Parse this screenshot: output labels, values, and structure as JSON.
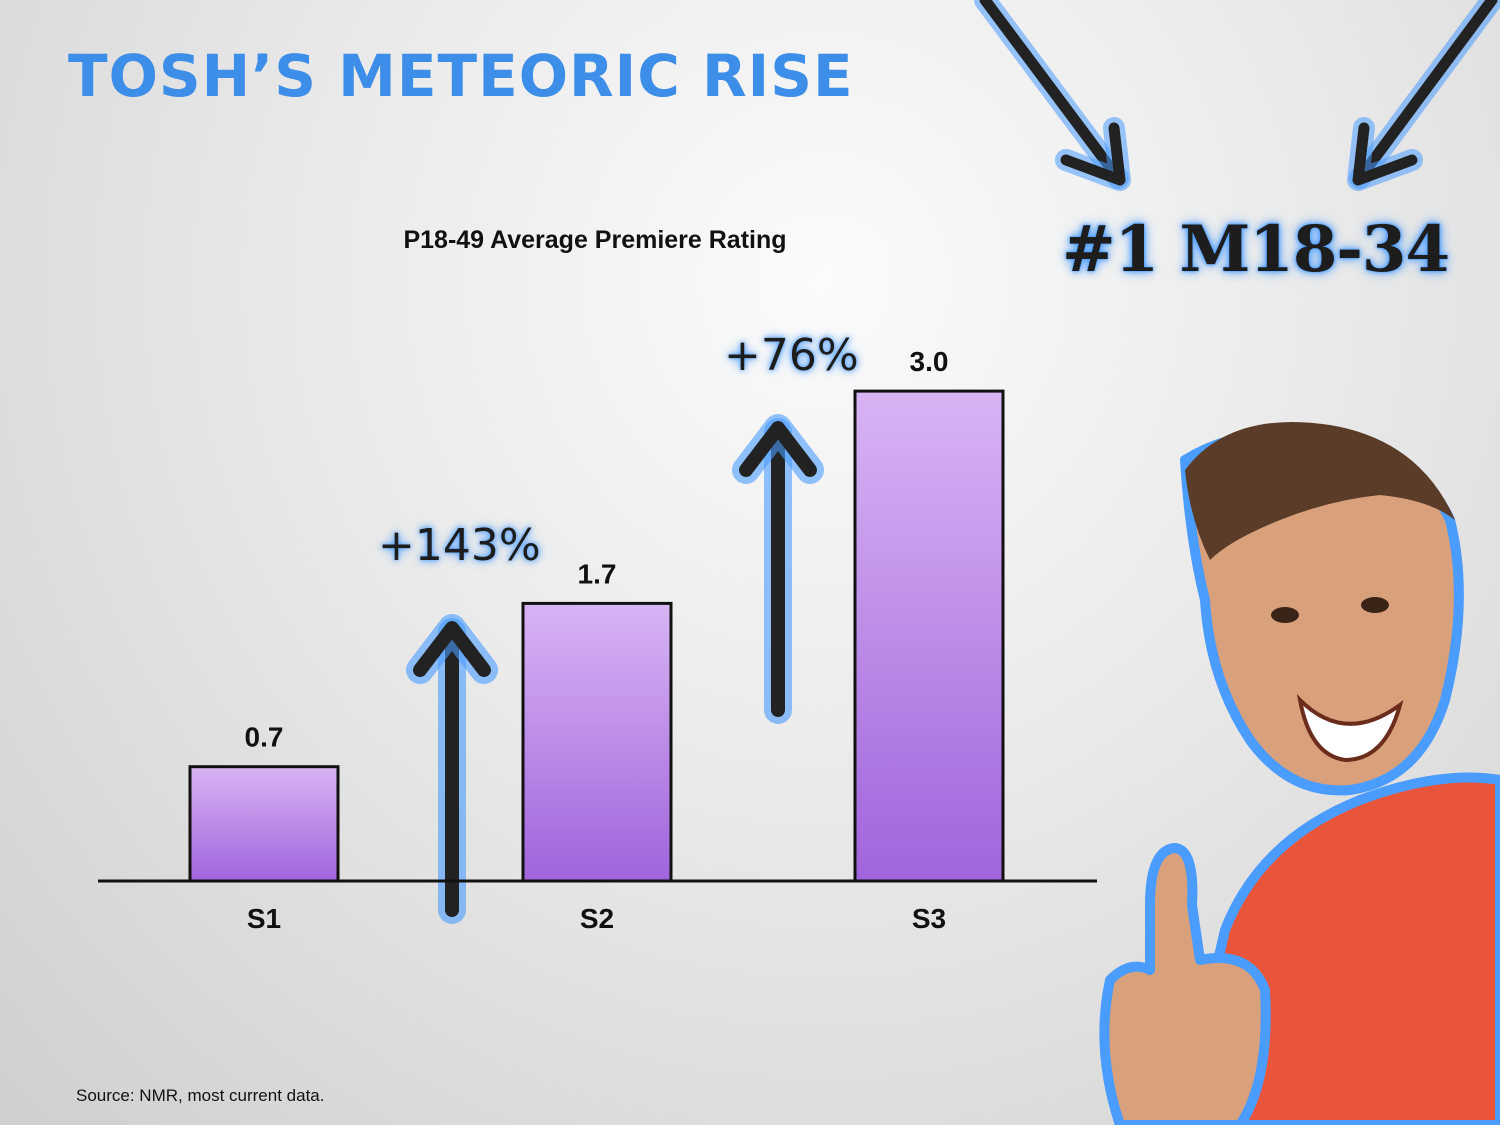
{
  "slide": {
    "title": "TOSH’S METEORIC RISE",
    "badge": "#1 M18-34",
    "source": "Source: NMR, most current data."
  },
  "annotations": {
    "growth_1": "+143%",
    "growth_2": "+76%"
  },
  "colors": {
    "title": "#3d8ee8",
    "bar_top": "#d8b4f4",
    "bar_bottom": "#a064dc",
    "glow": "#4a9cff"
  },
  "chart_data": {
    "type": "bar",
    "title": "P18-49 Average Premiere Rating",
    "categories": [
      "S1",
      "S2",
      "S3"
    ],
    "values": [
      0.7,
      1.7,
      3.0
    ],
    "value_labels": [
      "0.7",
      "1.7",
      "3.0"
    ],
    "ylim": [
      0,
      3.0
    ],
    "grid": false,
    "legend": "none"
  }
}
